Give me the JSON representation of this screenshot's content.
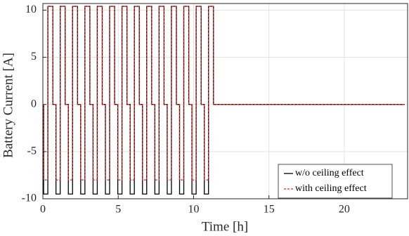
{
  "chart_data": {
    "type": "line",
    "xlabel": "Time [h]",
    "ylabel": "Battery Current [A]",
    "x": [
      0,
      0.05,
      0.05,
      0.33,
      0.33,
      0.66,
      0.66,
      0.87,
      0.87,
      1.15,
      1.15,
      1.48,
      1.48,
      1.69,
      1.69,
      1.97,
      1.97,
      2.3,
      2.3,
      2.51,
      2.51,
      2.79,
      2.79,
      3.12,
      3.12,
      3.33,
      3.33,
      3.61,
      3.61,
      3.94,
      3.94,
      4.15,
      4.15,
      4.43,
      4.43,
      4.76,
      4.76,
      4.97,
      4.97,
      5.25,
      5.25,
      5.58,
      5.58,
      5.79,
      5.79,
      6.07,
      6.07,
      6.4,
      6.4,
      6.61,
      6.61,
      6.89,
      6.89,
      7.22,
      7.22,
      7.43,
      7.43,
      7.71,
      7.71,
      8.04,
      8.04,
      8.25,
      8.25,
      8.53,
      8.53,
      8.86,
      8.86,
      9.07,
      9.07,
      9.35,
      9.35,
      9.68,
      9.68,
      9.89,
      9.89,
      10.17,
      10.17,
      10.5,
      10.5,
      10.71,
      10.71,
      10.99,
      10.99,
      11.32,
      11.32,
      24
    ],
    "series": [
      {
        "name": "w/o ceiling effect",
        "color": "#000000",
        "linestyle": "solid",
        "values": [
          0,
          0,
          -9.5,
          -9.5,
          10.4,
          10.4,
          0,
          0,
          -9.5,
          -9.5,
          10.4,
          10.4,
          0,
          0,
          -9.5,
          -9.5,
          10.4,
          10.4,
          0,
          0,
          -9.5,
          -9.5,
          10.4,
          10.4,
          0,
          0,
          -9.5,
          -9.5,
          10.4,
          10.4,
          0,
          0,
          -9.5,
          -9.5,
          10.4,
          10.4,
          0,
          0,
          -9.5,
          -9.5,
          10.4,
          10.4,
          0,
          0,
          -9.5,
          -9.5,
          10.4,
          10.4,
          0,
          0,
          -9.5,
          -9.5,
          10.4,
          10.4,
          0,
          0,
          -9.5,
          -9.5,
          10.4,
          10.4,
          0,
          0,
          -9.5,
          -9.5,
          10.4,
          10.4,
          0,
          0,
          -9.5,
          -9.5,
          10.4,
          10.4,
          0,
          0,
          -9.5,
          -9.5,
          10.4,
          10.4,
          0,
          0,
          -9.5,
          -9.5,
          10.4,
          10.4,
          0,
          0
        ]
      },
      {
        "name": "with ceiling effect",
        "color": "#e8201c",
        "linestyle": "dashed",
        "values": [
          0,
          0,
          -8,
          -8,
          10.4,
          10.4,
          0,
          0,
          -8,
          -8,
          10.4,
          10.4,
          0,
          0,
          -8,
          -8,
          10.4,
          10.4,
          0,
          0,
          -8,
          -8,
          10.4,
          10.4,
          0,
          0,
          -8,
          -8,
          10.4,
          10.4,
          0,
          0,
          -8,
          -8,
          10.4,
          10.4,
          0,
          0,
          -8,
          -8,
          10.4,
          10.4,
          0,
          0,
          -8,
          -8,
          10.4,
          10.4,
          0,
          0,
          -8,
          -8,
          10.4,
          10.4,
          0,
          0,
          -8,
          -8,
          10.4,
          10.4,
          0,
          0,
          -8,
          -8,
          10.4,
          10.4,
          0,
          0,
          -8,
          -8,
          10.4,
          10.4,
          0,
          0,
          -8,
          -8,
          10.4,
          10.4,
          0,
          0,
          -8,
          -8,
          10.4,
          10.4,
          0,
          0
        ]
      }
    ],
    "xlim": [
      0,
      24.2
    ],
    "xticks": [
      0,
      5,
      10,
      15,
      20
    ],
    "ylim": [
      -10,
      10.7
    ],
    "yticks": [
      -10,
      -5,
      0,
      5,
      10
    ],
    "grid": true,
    "legend_loc": "lower right"
  }
}
